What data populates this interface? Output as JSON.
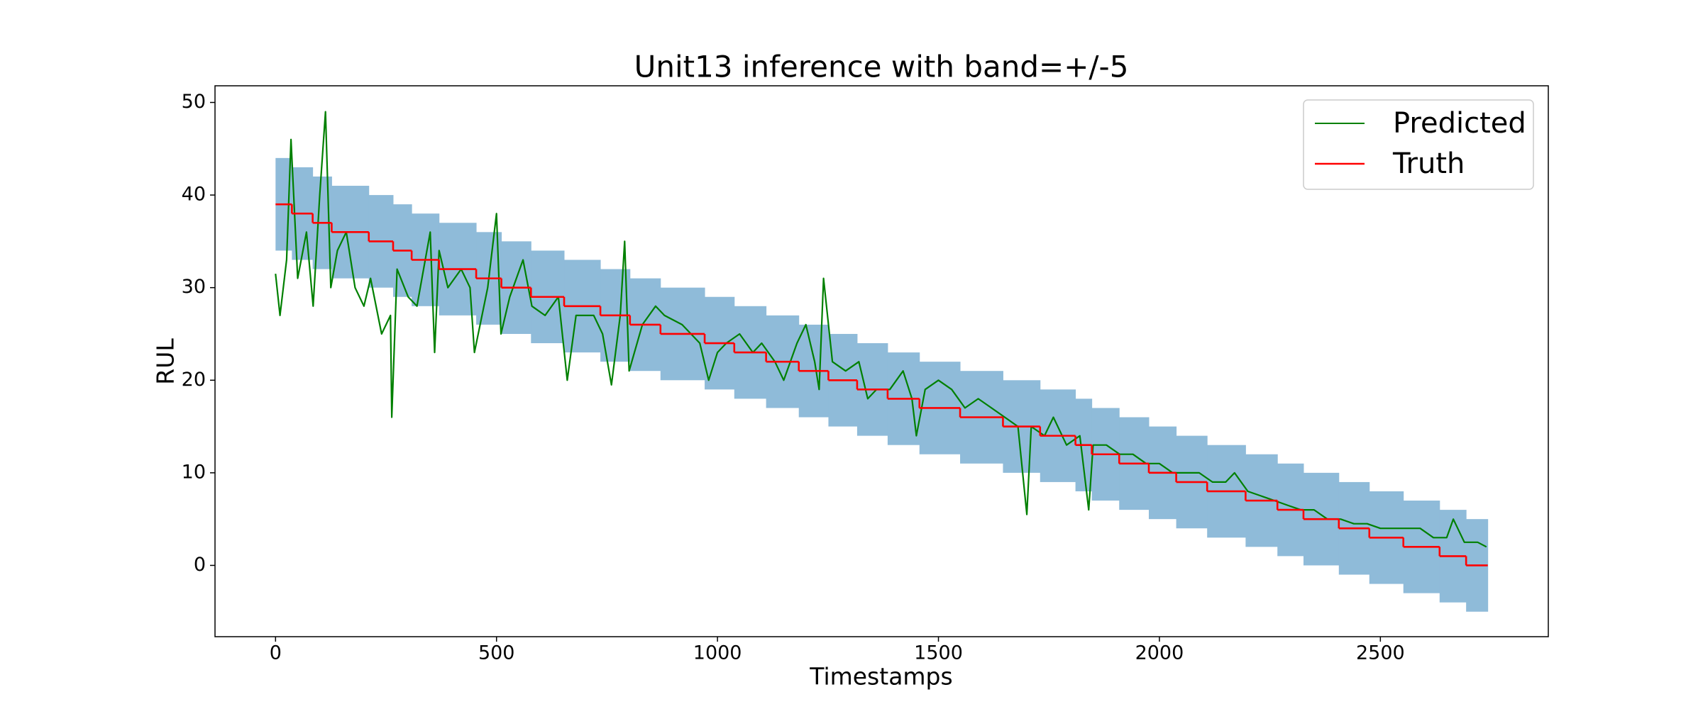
{
  "chart_data": {
    "type": "line",
    "title": "Unit13 inference with band=+/-5",
    "xlabel": "Timestamps",
    "ylabel": "RUL",
    "xlim": [
      -137,
      2880
    ],
    "ylim": [
      -7.7,
      51.8
    ],
    "xticks": [
      0,
      500,
      1000,
      1500,
      2000,
      2500
    ],
    "yticks": [
      0,
      10,
      20,
      30,
      40,
      50
    ],
    "legend": "upper right",
    "series": [
      {
        "name": "Predicted",
        "color": "#008000",
        "style": "line",
        "x": [
          0,
          10,
          25,
          35,
          50,
          70,
          85,
          100,
          113,
          125,
          140,
          160,
          180,
          200,
          215,
          240,
          260,
          263,
          275,
          300,
          320,
          350,
          360,
          370,
          390,
          420,
          440,
          450,
          480,
          500,
          510,
          530,
          560,
          580,
          610,
          640,
          660,
          680,
          720,
          740,
          760,
          780,
          790,
          800,
          830,
          860,
          880,
          920,
          960,
          980,
          1000,
          1020,
          1050,
          1080,
          1100,
          1130,
          1150,
          1180,
          1200,
          1220,
          1230,
          1240,
          1260,
          1290,
          1320,
          1340,
          1360,
          1390,
          1420,
          1440,
          1450,
          1470,
          1500,
          1530,
          1560,
          1590,
          1620,
          1650,
          1680,
          1700,
          1710,
          1740,
          1760,
          1790,
          1820,
          1840,
          1850,
          1880,
          1910,
          1940,
          1970,
          2000,
          2030,
          2060,
          2090,
          2120,
          2150,
          2170,
          2200,
          2230,
          2260,
          2290,
          2320,
          2350,
          2380,
          2410,
          2440,
          2470,
          2500,
          2530,
          2560,
          2590,
          2620,
          2650,
          2665,
          2690,
          2720,
          2740
        ],
        "values": [
          31.5,
          27,
          33,
          46,
          31,
          36,
          28,
          40,
          49,
          30,
          34,
          36,
          30,
          28,
          31,
          25,
          27,
          16,
          32,
          29,
          28,
          36,
          23,
          34,
          30,
          32,
          30,
          23,
          30,
          38,
          25,
          29,
          33,
          28,
          27,
          29,
          20,
          27,
          27,
          25,
          19.5,
          27,
          35,
          21,
          26,
          28,
          27,
          26,
          24,
          20,
          23,
          24,
          25,
          23,
          24,
          22,
          20,
          24,
          26,
          22,
          19,
          31,
          22,
          21,
          22,
          18,
          19,
          19,
          21,
          18,
          14,
          19,
          20,
          19,
          17,
          18,
          17,
          16,
          15,
          5.5,
          15,
          14,
          16,
          13,
          14,
          6,
          13,
          13,
          12,
          12,
          11,
          11,
          10,
          10,
          10,
          9,
          9,
          10,
          8,
          7.5,
          7,
          6.5,
          6,
          6,
          5,
          5,
          4.5,
          4.5,
          4,
          4,
          4,
          4,
          3,
          3,
          5,
          2.5,
          2.5,
          2
        ]
      },
      {
        "name": "Truth",
        "color": "#ff0000",
        "style": "step",
        "x": [
          0,
          37,
          84,
          127,
          211,
          266,
          308,
          370,
          454,
          511,
          578,
          653,
          735,
          802,
          871,
          971,
          1038,
          1110,
          1184,
          1251,
          1316,
          1385,
          1457,
          1549,
          1646,
          1730,
          1810,
          1847,
          1909,
          1976,
          2038,
          2108,
          2195,
          2267,
          2326,
          2406,
          2475,
          2552,
          2634,
          2694,
          2743
        ],
        "values": [
          39,
          38,
          37,
          36,
          35,
          34,
          33,
          32,
          31,
          30,
          29,
          28,
          27,
          26,
          25,
          24,
          23,
          22,
          21,
          20,
          19,
          18,
          17,
          16,
          15,
          14,
          13,
          12,
          11,
          10,
          9,
          8,
          7,
          6,
          5,
          4,
          3,
          2,
          1,
          0,
          0
        ]
      }
    ],
    "band": {
      "color": "#8fbbd9",
      "lower": [
        34,
        33,
        32,
        31,
        30,
        29,
        28,
        27,
        26,
        25,
        24,
        23,
        22,
        21,
        20,
        19,
        18,
        17,
        16,
        15,
        14,
        13,
        12,
        11,
        10,
        9,
        8,
        7,
        6,
        5,
        4,
        3,
        2,
        1,
        0,
        -1,
        -2,
        -3,
        -4,
        -5,
        -5
      ],
      "upper": [
        44,
        43,
        42,
        41,
        40,
        39,
        38,
        37,
        36,
        35,
        34,
        33,
        32,
        31,
        30,
        29,
        28,
        27,
        26,
        25,
        24,
        23,
        22,
        21,
        20,
        19,
        18,
        17,
        16,
        15,
        14,
        13,
        12,
        11,
        10,
        9,
        8,
        7,
        6,
        5,
        5
      ]
    }
  }
}
